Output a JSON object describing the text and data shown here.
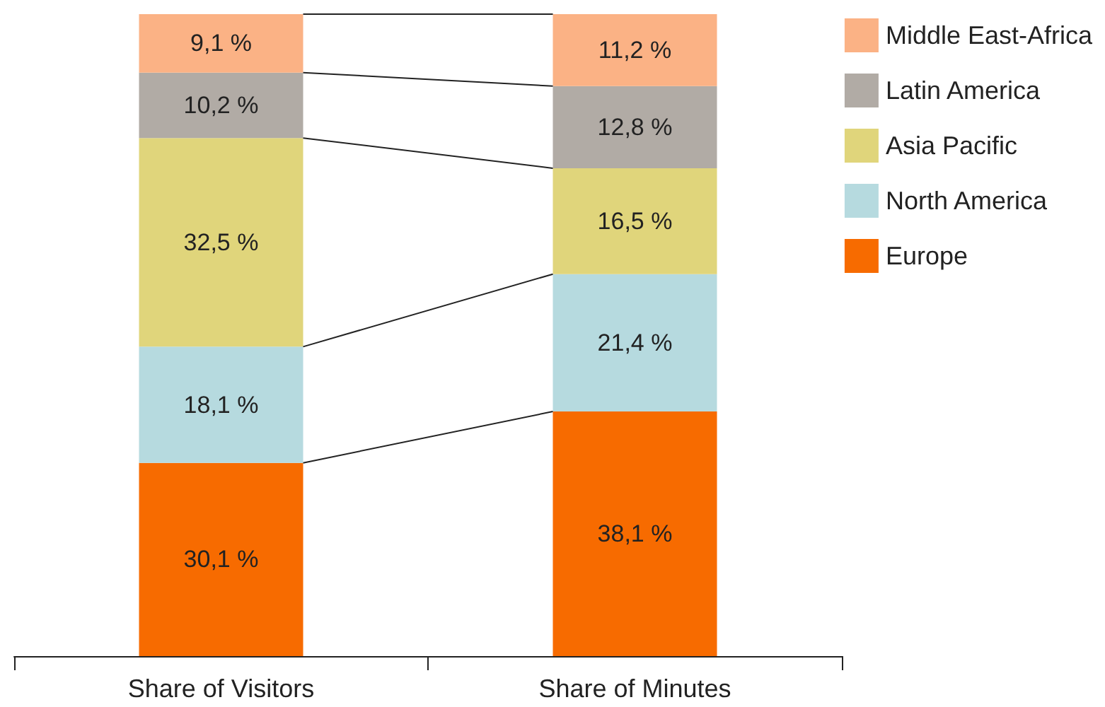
{
  "chart_data": {
    "type": "bar",
    "stacked": true,
    "categories": [
      "Share of Visitors",
      "Share of Minutes"
    ],
    "series": [
      {
        "name": "Europe",
        "color": "#f76b00",
        "values": [
          30.1,
          38.1
        ],
        "value_labels": [
          "30,1 %",
          "38,1 %"
        ]
      },
      {
        "name": "North America",
        "color": "#b6dadf",
        "values": [
          18.1,
          21.4
        ],
        "value_labels": [
          "18,1 %",
          "21,4 %"
        ]
      },
      {
        "name": "Asia Pacific",
        "color": "#e0d57b",
        "values": [
          32.5,
          16.5
        ],
        "value_labels": [
          "32,5 %",
          "16,5 %"
        ]
      },
      {
        "name": "Latin America",
        "color": "#b1aba5",
        "values": [
          10.2,
          12.8
        ],
        "value_labels": [
          "10,2 %",
          "12,8 %"
        ]
      },
      {
        "name": "Middle East-Africa",
        "color": "#fbb285",
        "values": [
          9.1,
          11.2
        ],
        "value_labels": [
          "9,1 %",
          "11,2 %"
        ]
      }
    ],
    "legend": "top right"
  }
}
